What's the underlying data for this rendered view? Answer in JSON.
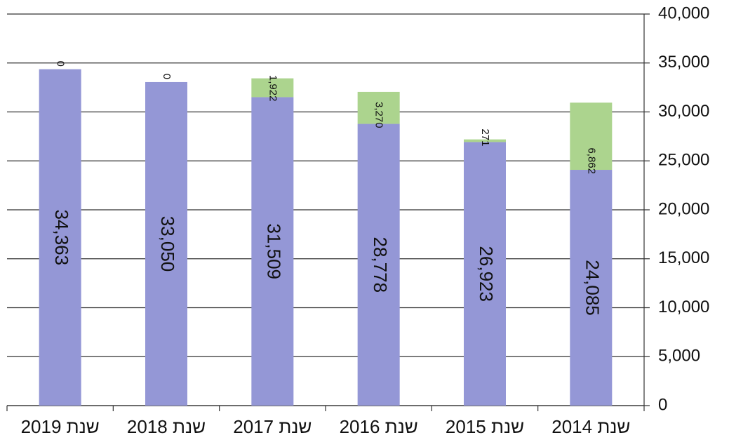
{
  "chart_data": {
    "type": "stacked_bar",
    "categories": [
      "שנת 2019",
      "שנת 2018",
      "שנת 2017",
      "שנת 2016",
      "שנת 2015",
      "שנת 2014"
    ],
    "series": [
      {
        "color": "#9497d6",
        "values": [
          34363,
          33050,
          31509,
          28778,
          26923,
          24085
        ],
        "value_labels": [
          "34,363",
          "33,050",
          "31,509",
          "28,778",
          "26,923",
          "24,085"
        ]
      },
      {
        "color": "#acd48e",
        "values": [
          0,
          0,
          1922,
          3270,
          271,
          6862
        ],
        "value_labels": [
          "0",
          "0",
          "1,922",
          "3,270",
          "271",
          "6,862"
        ]
      }
    ],
    "ylim": [
      0,
      40000
    ],
    "yticks": [
      0,
      {
        "value": 5000,
        "label": "5,000"
      },
      {
        "value": 10000,
        "label": "10,000"
      },
      {
        "value": 15000,
        "label": "15,000"
      },
      {
        "value": 20000,
        "label": "20,000"
      },
      {
        "value": 25000,
        "label": "25,000"
      },
      {
        "value": 30000,
        "label": "30,000"
      },
      {
        "value": 35000,
        "label": "35,000"
      },
      {
        "value": 40000,
        "label": "40,000"
      }
    ],
    "grid": true,
    "y_axis_side": "right"
  }
}
